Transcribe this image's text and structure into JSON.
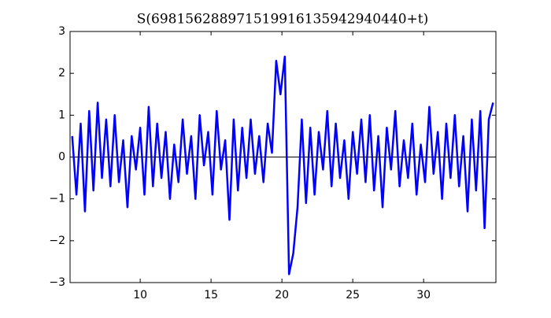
{
  "chart_data": {
    "type": "line",
    "title": "S(698156288971519916135942940440+t)",
    "x": [
      5.2,
      5.5,
      5.8,
      6.1,
      6.4,
      6.7,
      7.0,
      7.3,
      7.6,
      7.9,
      8.2,
      8.5,
      8.8,
      9.1,
      9.4,
      9.7,
      10.0,
      10.3,
      10.6,
      10.9,
      11.2,
      11.5,
      11.8,
      12.1,
      12.4,
      12.7,
      13.0,
      13.3,
      13.6,
      13.9,
      14.2,
      14.5,
      14.8,
      15.1,
      15.4,
      15.7,
      16.0,
      16.3,
      16.6,
      16.9,
      17.2,
      17.5,
      17.8,
      18.1,
      18.4,
      18.7,
      19.0,
      19.3,
      19.6,
      19.9,
      20.2,
      20.5,
      20.8,
      21.1,
      21.4,
      21.7,
      22.0,
      22.3,
      22.6,
      22.9,
      23.2,
      23.5,
      23.8,
      24.1,
      24.4,
      24.7,
      25.0,
      25.3,
      25.6,
      25.9,
      26.2,
      26.5,
      26.8,
      27.1,
      27.4,
      27.7,
      28.0,
      28.3,
      28.6,
      28.9,
      29.2,
      29.5,
      29.8,
      30.1,
      30.4,
      30.7,
      31.0,
      31.3,
      31.6,
      31.9,
      32.2,
      32.5,
      32.8,
      33.1,
      33.4,
      33.7,
      34.0,
      34.3,
      34.6,
      34.9
    ],
    "series": [
      {
        "color": "#0000ff",
        "values": [
          0.5,
          -0.9,
          0.8,
          -1.3,
          1.1,
          -0.8,
          1.3,
          -0.5,
          0.9,
          -0.7,
          1.0,
          -0.6,
          0.4,
          -1.2,
          0.5,
          -0.3,
          0.7,
          -0.9,
          1.2,
          -0.7,
          0.8,
          -0.5,
          0.6,
          -1.0,
          0.3,
          -0.6,
          0.9,
          -0.4,
          0.5,
          -1.0,
          1.0,
          -0.2,
          0.6,
          -0.9,
          1.1,
          -0.3,
          0.4,
          -1.5,
          0.9,
          -0.8,
          0.7,
          -0.5,
          0.9,
          -0.4,
          0.5,
          -0.6,
          0.8,
          0.1,
          2.3,
          1.5,
          2.4,
          -2.8,
          -2.3,
          -1.2,
          0.9,
          -1.1,
          0.7,
          -0.9,
          0.6,
          -0.3,
          1.1,
          -0.7,
          0.8,
          -0.5,
          0.4,
          -1.0,
          0.6,
          -0.4,
          0.9,
          -0.6,
          1.0,
          -0.8,
          0.5,
          -1.2,
          0.7,
          -0.3,
          1.1,
          -0.7,
          0.4,
          -0.5,
          0.8,
          -0.9,
          0.3,
          -0.6,
          1.2,
          -0.4,
          0.6,
          -1.0,
          0.8,
          -0.5,
          1.0,
          -0.7,
          0.5,
          -1.3,
          0.9,
          -0.8,
          1.1,
          -1.7,
          0.9,
          1.3
        ]
      }
    ],
    "axhline": 0,
    "xlim": [
      5.05,
      35.1
    ],
    "xticks": [
      10,
      15,
      20,
      25,
      30
    ],
    "ylim": [
      -3,
      3
    ],
    "yticks": [
      {
        "value": -3,
        "label": "−3"
      },
      {
        "value": -2,
        "label": "−2"
      },
      {
        "value": -1,
        "label": "−1"
      },
      0,
      1,
      2,
      3
    ]
  }
}
